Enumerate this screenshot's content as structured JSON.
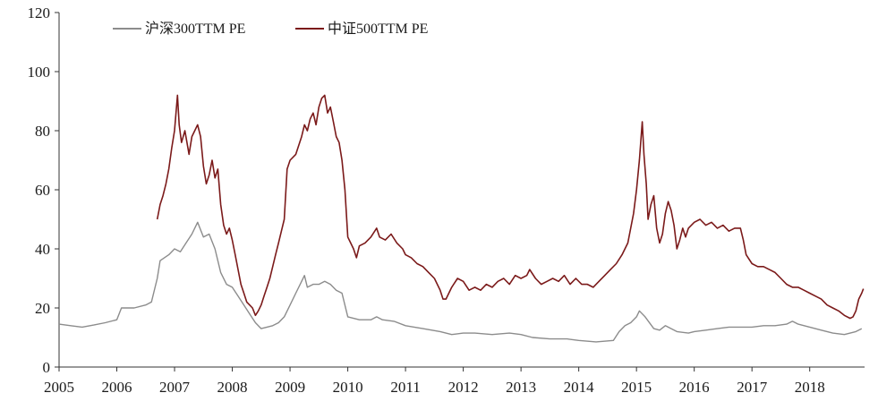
{
  "chart_data": {
    "type": "line",
    "title": "",
    "xlabel": "",
    "ylabel": "",
    "ylim": [
      0,
      120
    ],
    "xlim": [
      2005.0,
      2018.95
    ],
    "y_ticks": [
      "0",
      "20",
      "40",
      "60",
      "80",
      "100",
      "120"
    ],
    "x_ticks": [
      "2005",
      "2006",
      "2007",
      "2008",
      "2009",
      "2010",
      "2011",
      "2012",
      "2013",
      "2014",
      "2015",
      "2016",
      "2017",
      "2018"
    ],
    "grid": false,
    "legend_position": "top-left",
    "series": [
      {
        "name": "沪深300TTM PE",
        "color": "#8c8c8c",
        "points": [
          [
            2005.0,
            14.5
          ],
          [
            2005.2,
            14.0
          ],
          [
            2005.4,
            13.5
          ],
          [
            2005.6,
            14.2
          ],
          [
            2005.8,
            15.0
          ],
          [
            2006.0,
            16.0
          ],
          [
            2006.08,
            20.0
          ],
          [
            2006.3,
            20.0
          ],
          [
            2006.5,
            21.0
          ],
          [
            2006.6,
            22.0
          ],
          [
            2006.7,
            30.0
          ],
          [
            2006.75,
            36.0
          ],
          [
            2006.9,
            38.0
          ],
          [
            2007.0,
            40.0
          ],
          [
            2007.1,
            39.0
          ],
          [
            2007.2,
            42.0
          ],
          [
            2007.3,
            45.0
          ],
          [
            2007.4,
            49.0
          ],
          [
            2007.5,
            44.0
          ],
          [
            2007.6,
            45.0
          ],
          [
            2007.7,
            40.0
          ],
          [
            2007.8,
            32.0
          ],
          [
            2007.9,
            28.0
          ],
          [
            2008.0,
            27.0
          ],
          [
            2008.1,
            24.0
          ],
          [
            2008.2,
            21.0
          ],
          [
            2008.3,
            18.0
          ],
          [
            2008.4,
            15.0
          ],
          [
            2008.5,
            13.0
          ],
          [
            2008.6,
            13.5
          ],
          [
            2008.7,
            14.0
          ],
          [
            2008.8,
            15.0
          ],
          [
            2008.9,
            17.0
          ],
          [
            2009.0,
            21.0
          ],
          [
            2009.1,
            25.0
          ],
          [
            2009.2,
            29.0
          ],
          [
            2009.25,
            31.0
          ],
          [
            2009.3,
            27.0
          ],
          [
            2009.4,
            28.0
          ],
          [
            2009.5,
            28.0
          ],
          [
            2009.6,
            29.0
          ],
          [
            2009.7,
            28.0
          ],
          [
            2009.8,
            26.0
          ],
          [
            2009.9,
            25.0
          ],
          [
            2010.0,
            17.0
          ],
          [
            2010.2,
            16.0
          ],
          [
            2010.4,
            16.0
          ],
          [
            2010.5,
            17.0
          ],
          [
            2010.6,
            16.0
          ],
          [
            2010.8,
            15.5
          ],
          [
            2011.0,
            14.0
          ],
          [
            2011.3,
            13.0
          ],
          [
            2011.6,
            12.0
          ],
          [
            2011.8,
            11.0
          ],
          [
            2012.0,
            11.5
          ],
          [
            2012.2,
            11.5
          ],
          [
            2012.5,
            11.0
          ],
          [
            2012.8,
            11.5
          ],
          [
            2013.0,
            11.0
          ],
          [
            2013.2,
            10.0
          ],
          [
            2013.5,
            9.5
          ],
          [
            2013.8,
            9.5
          ],
          [
            2014.0,
            9.0
          ],
          [
            2014.3,
            8.5
          ],
          [
            2014.6,
            9.0
          ],
          [
            2014.7,
            12.0
          ],
          [
            2014.8,
            14.0
          ],
          [
            2014.9,
            15.0
          ],
          [
            2015.0,
            17.0
          ],
          [
            2015.05,
            19.0
          ],
          [
            2015.15,
            17.0
          ],
          [
            2015.3,
            13.0
          ],
          [
            2015.4,
            12.5
          ],
          [
            2015.5,
            14.0
          ],
          [
            2015.6,
            13.0
          ],
          [
            2015.7,
            12.0
          ],
          [
            2015.9,
            11.5
          ],
          [
            2016.0,
            12.0
          ],
          [
            2016.2,
            12.5
          ],
          [
            2016.4,
            13.0
          ],
          [
            2016.6,
            13.5
          ],
          [
            2016.8,
            13.5
          ],
          [
            2017.0,
            13.5
          ],
          [
            2017.2,
            14.0
          ],
          [
            2017.4,
            14.0
          ],
          [
            2017.6,
            14.5
          ],
          [
            2017.7,
            15.5
          ],
          [
            2017.8,
            14.5
          ],
          [
            2018.0,
            13.5
          ],
          [
            2018.2,
            12.5
          ],
          [
            2018.4,
            11.5
          ],
          [
            2018.6,
            11.0
          ],
          [
            2018.7,
            11.5
          ],
          [
            2018.8,
            12.0
          ],
          [
            2018.9,
            13.0
          ]
        ]
      },
      {
        "name": "中证500TTM PE",
        "color": "#7b1a1a",
        "points": [
          [
            2006.7,
            50.0
          ],
          [
            2006.75,
            55.0
          ],
          [
            2006.8,
            58.0
          ],
          [
            2006.85,
            62.0
          ],
          [
            2006.9,
            67.0
          ],
          [
            2006.95,
            74.0
          ],
          [
            2007.0,
            80.0
          ],
          [
            2007.05,
            92.0
          ],
          [
            2007.08,
            82.0
          ],
          [
            2007.12,
            76.0
          ],
          [
            2007.18,
            80.0
          ],
          [
            2007.25,
            72.0
          ],
          [
            2007.3,
            78.0
          ],
          [
            2007.35,
            80.0
          ],
          [
            2007.4,
            82.0
          ],
          [
            2007.45,
            78.0
          ],
          [
            2007.5,
            68.0
          ],
          [
            2007.55,
            62.0
          ],
          [
            2007.6,
            65.0
          ],
          [
            2007.65,
            70.0
          ],
          [
            2007.7,
            64.0
          ],
          [
            2007.75,
            67.0
          ],
          [
            2007.8,
            55.0
          ],
          [
            2007.85,
            48.0
          ],
          [
            2007.9,
            45.0
          ],
          [
            2007.95,
            47.0
          ],
          [
            2008.0,
            43.0
          ],
          [
            2008.05,
            38.0
          ],
          [
            2008.1,
            33.0
          ],
          [
            2008.15,
            28.0
          ],
          [
            2008.2,
            25.0
          ],
          [
            2008.25,
            22.0
          ],
          [
            2008.3,
            21.0
          ],
          [
            2008.35,
            20.0
          ],
          [
            2008.4,
            17.5
          ],
          [
            2008.45,
            19.0
          ],
          [
            2008.5,
            21.0
          ],
          [
            2008.55,
            24.0
          ],
          [
            2008.6,
            27.0
          ],
          [
            2008.65,
            30.0
          ],
          [
            2008.7,
            34.0
          ],
          [
            2008.75,
            38.0
          ],
          [
            2008.8,
            42.0
          ],
          [
            2008.85,
            46.0
          ],
          [
            2008.9,
            50.0
          ],
          [
            2008.95,
            67.0
          ],
          [
            2009.0,
            70.0
          ],
          [
            2009.1,
            72.0
          ],
          [
            2009.2,
            78.0
          ],
          [
            2009.25,
            82.0
          ],
          [
            2009.3,
            80.0
          ],
          [
            2009.35,
            84.0
          ],
          [
            2009.4,
            86.0
          ],
          [
            2009.45,
            82.0
          ],
          [
            2009.5,
            88.0
          ],
          [
            2009.55,
            91.0
          ],
          [
            2009.6,
            92.0
          ],
          [
            2009.65,
            86.0
          ],
          [
            2009.7,
            88.0
          ],
          [
            2009.75,
            83.0
          ],
          [
            2009.8,
            78.0
          ],
          [
            2009.85,
            76.0
          ],
          [
            2009.9,
            70.0
          ],
          [
            2009.95,
            60.0
          ],
          [
            2010.0,
            44.0
          ],
          [
            2010.05,
            42.0
          ],
          [
            2010.1,
            40.0
          ],
          [
            2010.15,
            37.0
          ],
          [
            2010.2,
            41.0
          ],
          [
            2010.3,
            42.0
          ],
          [
            2010.4,
            44.0
          ],
          [
            2010.5,
            47.0
          ],
          [
            2010.55,
            44.0
          ],
          [
            2010.65,
            43.0
          ],
          [
            2010.75,
            45.0
          ],
          [
            2010.85,
            42.0
          ],
          [
            2010.95,
            40.0
          ],
          [
            2011.0,
            38.0
          ],
          [
            2011.1,
            37.0
          ],
          [
            2011.2,
            35.0
          ],
          [
            2011.3,
            34.0
          ],
          [
            2011.4,
            32.0
          ],
          [
            2011.5,
            30.0
          ],
          [
            2011.6,
            26.0
          ],
          [
            2011.65,
            23.0
          ],
          [
            2011.7,
            23.0
          ],
          [
            2011.75,
            25.0
          ],
          [
            2011.8,
            27.0
          ],
          [
            2011.9,
            30.0
          ],
          [
            2012.0,
            29.0
          ],
          [
            2012.1,
            26.0
          ],
          [
            2012.2,
            27.0
          ],
          [
            2012.3,
            26.0
          ],
          [
            2012.4,
            28.0
          ],
          [
            2012.5,
            27.0
          ],
          [
            2012.6,
            29.0
          ],
          [
            2012.7,
            30.0
          ],
          [
            2012.8,
            28.0
          ],
          [
            2012.9,
            31.0
          ],
          [
            2013.0,
            30.0
          ],
          [
            2013.1,
            31.0
          ],
          [
            2013.15,
            33.0
          ],
          [
            2013.25,
            30.0
          ],
          [
            2013.35,
            28.0
          ],
          [
            2013.45,
            29.0
          ],
          [
            2013.55,
            30.0
          ],
          [
            2013.65,
            29.0
          ],
          [
            2013.75,
            31.0
          ],
          [
            2013.85,
            28.0
          ],
          [
            2013.95,
            30.0
          ],
          [
            2014.05,
            28.0
          ],
          [
            2014.15,
            28.0
          ],
          [
            2014.25,
            27.0
          ],
          [
            2014.35,
            29.0
          ],
          [
            2014.45,
            31.0
          ],
          [
            2014.55,
            33.0
          ],
          [
            2014.65,
            35.0
          ],
          [
            2014.75,
            38.0
          ],
          [
            2014.85,
            42.0
          ],
          [
            2014.95,
            52.0
          ],
          [
            2015.0,
            60.0
          ],
          [
            2015.05,
            70.0
          ],
          [
            2015.1,
            83.0
          ],
          [
            2015.13,
            72.0
          ],
          [
            2015.17,
            62.0
          ],
          [
            2015.2,
            50.0
          ],
          [
            2015.25,
            55.0
          ],
          [
            2015.3,
            58.0
          ],
          [
            2015.35,
            47.0
          ],
          [
            2015.4,
            42.0
          ],
          [
            2015.45,
            45.0
          ],
          [
            2015.5,
            52.0
          ],
          [
            2015.55,
            56.0
          ],
          [
            2015.6,
            53.0
          ],
          [
            2015.65,
            48.0
          ],
          [
            2015.7,
            40.0
          ],
          [
            2015.75,
            43.0
          ],
          [
            2015.8,
            47.0
          ],
          [
            2015.85,
            44.0
          ],
          [
            2015.9,
            47.0
          ],
          [
            2016.0,
            49.0
          ],
          [
            2016.1,
            50.0
          ],
          [
            2016.2,
            48.0
          ],
          [
            2016.3,
            49.0
          ],
          [
            2016.4,
            47.0
          ],
          [
            2016.5,
            48.0
          ],
          [
            2016.6,
            46.0
          ],
          [
            2016.7,
            47.0
          ],
          [
            2016.8,
            47.0
          ],
          [
            2016.85,
            43.0
          ],
          [
            2016.9,
            38.0
          ],
          [
            2017.0,
            35.0
          ],
          [
            2017.1,
            34.0
          ],
          [
            2017.2,
            34.0
          ],
          [
            2017.3,
            33.0
          ],
          [
            2017.4,
            32.0
          ],
          [
            2017.5,
            30.0
          ],
          [
            2017.6,
            28.0
          ],
          [
            2017.7,
            27.0
          ],
          [
            2017.8,
            27.0
          ],
          [
            2017.9,
            26.0
          ],
          [
            2018.0,
            25.0
          ],
          [
            2018.1,
            24.0
          ],
          [
            2018.2,
            23.0
          ],
          [
            2018.3,
            21.0
          ],
          [
            2018.4,
            20.0
          ],
          [
            2018.5,
            19.0
          ],
          [
            2018.6,
            17.5
          ],
          [
            2018.7,
            16.5
          ],
          [
            2018.75,
            17.0
          ],
          [
            2018.8,
            19.0
          ],
          [
            2018.85,
            23.0
          ],
          [
            2018.9,
            25.0
          ],
          [
            2018.93,
            26.5
          ]
        ]
      }
    ]
  }
}
